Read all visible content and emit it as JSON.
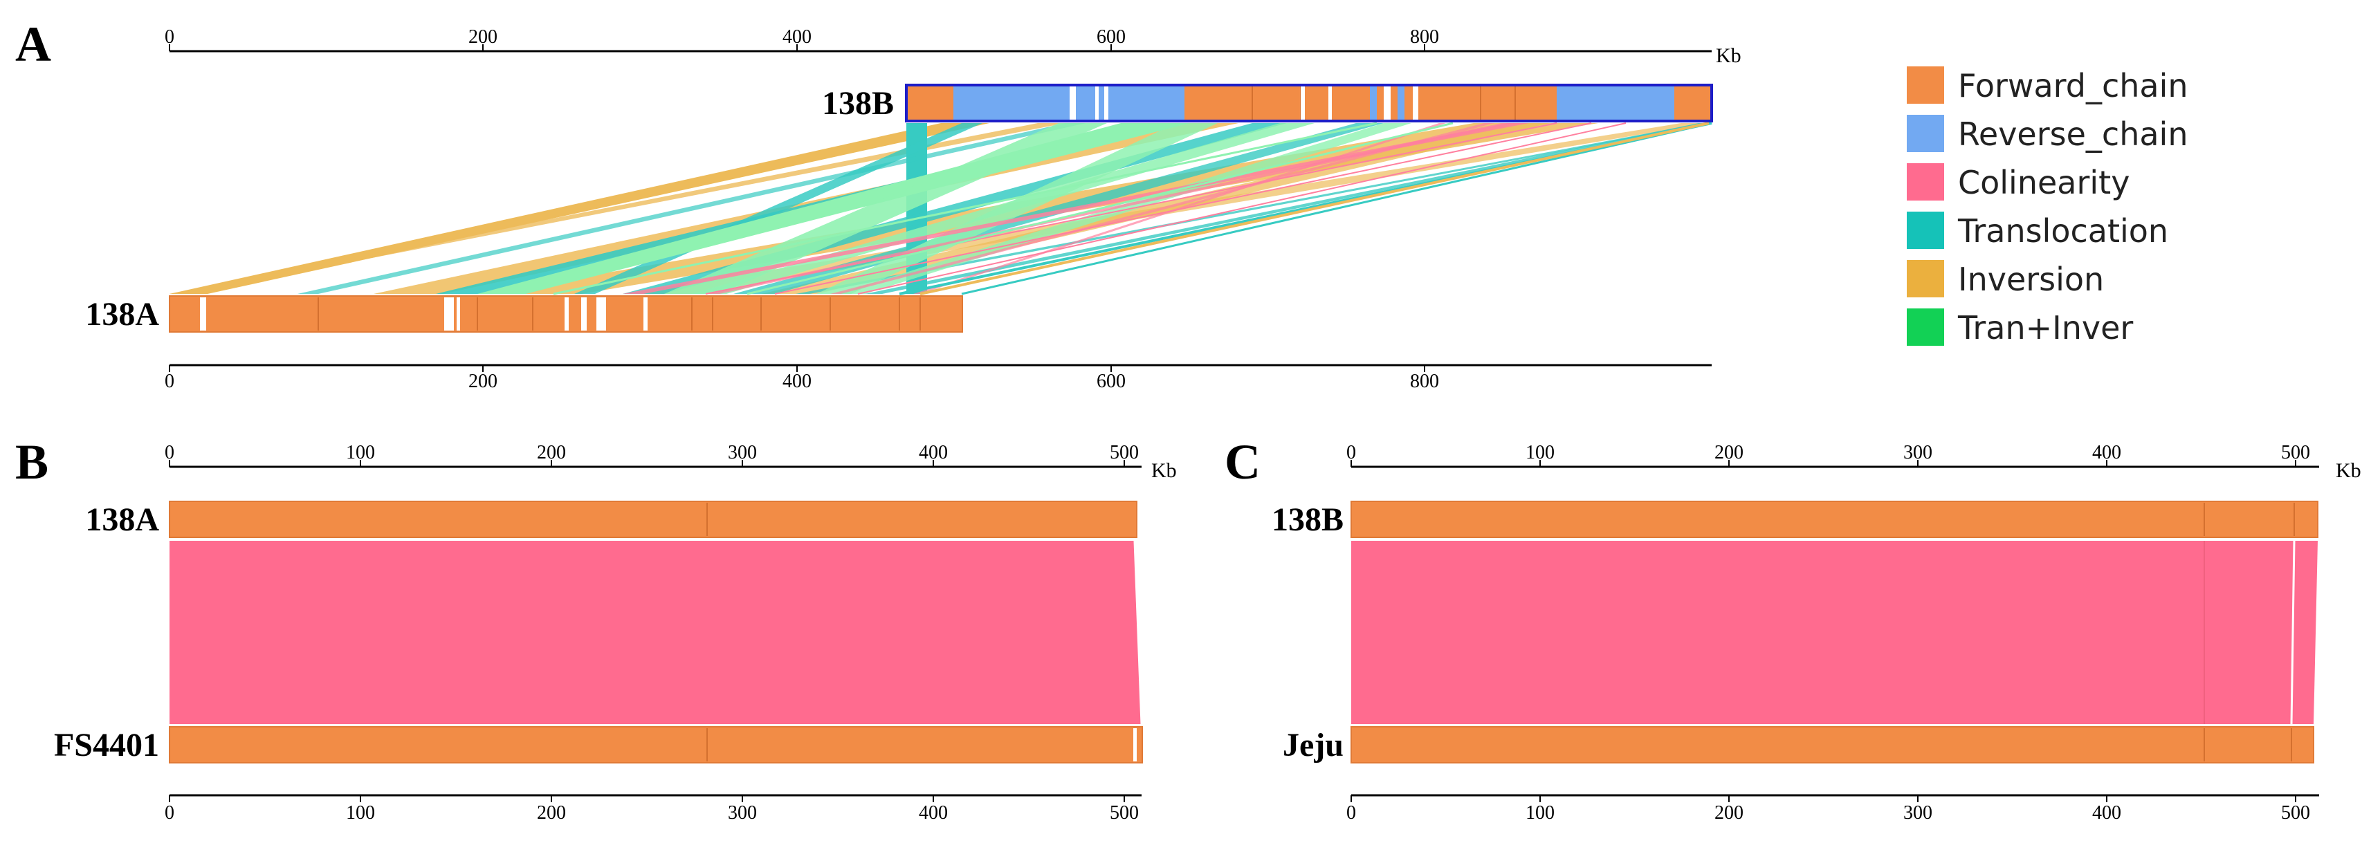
{
  "colors": {
    "forward": "#F28C46",
    "reverse": "#72A9F2",
    "colinearity": "#FF6B8F",
    "translocation": "#15C2B8",
    "inversion": "#EBB03E",
    "tran_inver": "#12D155",
    "light_green": "#7CF0A4"
  },
  "legend": [
    {
      "label": "Forward_chain",
      "color": "#F28C46"
    },
    {
      "label": "Reverse_chain",
      "color": "#72A9F2"
    },
    {
      "label": "Colinearity",
      "color": "#FF6B8F"
    },
    {
      "label": "Translocation",
      "color": "#15C2B8"
    },
    {
      "label": "Inversion",
      "color": "#EBB03E"
    },
    {
      "label": "Tran+Inver",
      "color": "#12D155"
    }
  ],
  "panels": {
    "A": {
      "letter": "A",
      "unit": "Kb",
      "top_axis_ticks": [
        "0",
        "200",
        "400",
        "600",
        "800"
      ],
      "bottom_axis_ticks": [
        "0",
        "200",
        "600",
        "400",
        "800"
      ],
      "genome_top": "138B",
      "genome_bottom": "138A",
      "genome_top_start_kb": 470,
      "genome_top_end_kb": 985,
      "genome_bottom_end_kb": 505
    },
    "B": {
      "letter": "B",
      "unit": "Kb",
      "top_axis_ticks": [
        "0",
        "100",
        "200",
        "300",
        "400",
        "500"
      ],
      "bottom_axis_ticks": [
        "0",
        "100",
        "200",
        "300",
        "400",
        "500"
      ],
      "genome_top": "138A",
      "genome_bottom": "FS4401",
      "genome_top_length_kb": 505,
      "genome_bottom_length_kb": 508
    },
    "C": {
      "letter": "C",
      "unit": "Kb",
      "top_axis_ticks": [
        "0",
        "100",
        "200",
        "300",
        "400",
        "500"
      ],
      "bottom_axis_ticks": [
        "0",
        "100",
        "200",
        "300",
        "400",
        "500"
      ],
      "genome_top": "138B",
      "genome_bottom": "Jeju",
      "genome_top_length_kb": 515,
      "genome_bottom_length_kb": 512
    }
  }
}
